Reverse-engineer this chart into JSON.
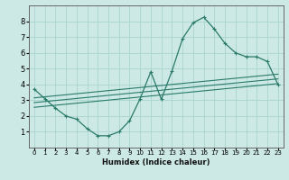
{
  "xlabel": "Humidex (Indice chaleur)",
  "bg_color": "#cce9e5",
  "grid_color": "#aad4cf",
  "line_color": "#2a7a6a",
  "xlim": [
    -0.5,
    23.5
  ],
  "ylim": [
    0,
    9
  ],
  "xticks": [
    0,
    1,
    2,
    3,
    4,
    5,
    6,
    7,
    8,
    9,
    10,
    11,
    12,
    13,
    14,
    15,
    16,
    17,
    18,
    19,
    20,
    21,
    22,
    23
  ],
  "yticks": [
    1,
    2,
    3,
    4,
    5,
    6,
    7,
    8
  ],
  "curve_x": [
    0,
    1,
    2,
    3,
    4,
    5,
    6,
    7,
    8,
    9,
    10,
    11,
    12,
    13,
    14,
    15,
    16,
    17,
    18,
    19,
    20,
    21,
    22,
    23
  ],
  "curve_y": [
    3.7,
    3.1,
    2.5,
    2.0,
    1.8,
    1.2,
    0.75,
    0.75,
    1.0,
    1.7,
    3.1,
    4.8,
    3.05,
    4.85,
    6.9,
    7.9,
    8.25,
    7.5,
    6.6,
    6.0,
    5.75,
    5.75,
    5.45,
    4.0
  ],
  "line1_x": [
    0,
    23
  ],
  "line1_y": [
    2.55,
    4.05
  ],
  "line2_x": [
    0,
    23
  ],
  "line2_y": [
    2.85,
    4.35
  ],
  "line3_x": [
    0,
    23
  ],
  "line3_y": [
    3.15,
    4.65
  ]
}
